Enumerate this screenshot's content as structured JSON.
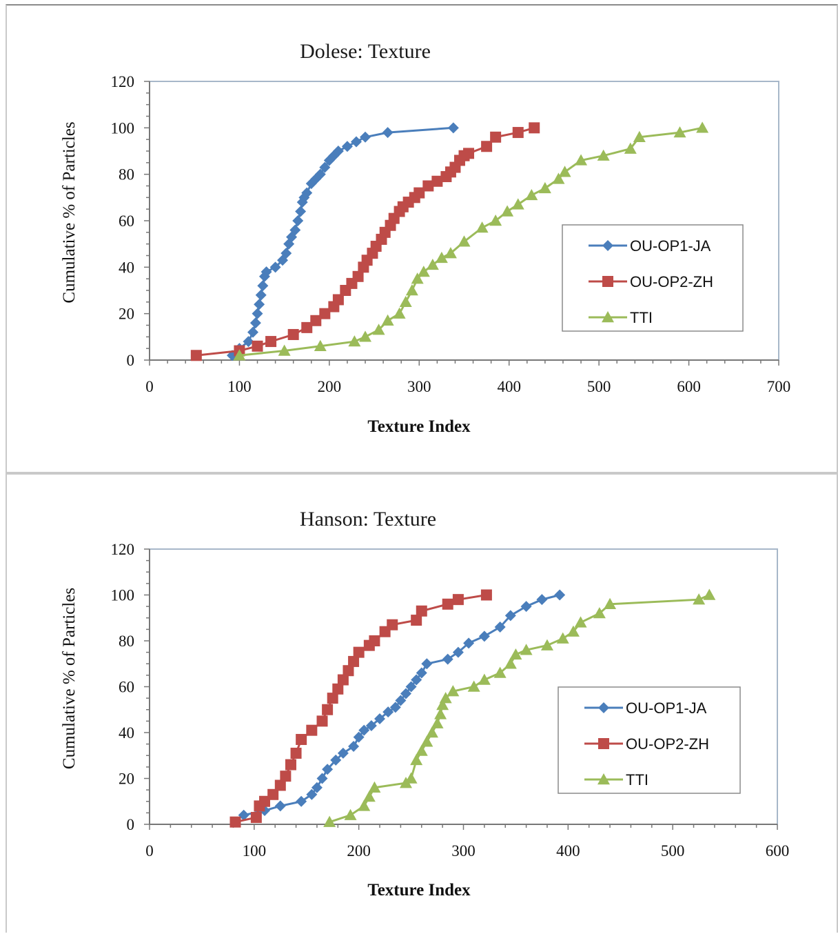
{
  "chart_data": [
    {
      "type": "line",
      "title": "Dolese: Texture",
      "xlabel": "Texture Index",
      "ylabel": "Cumulative % of Particles",
      "xlim": [
        0,
        700
      ],
      "ylim": [
        0,
        120
      ],
      "x_ticks": [
        0,
        100,
        200,
        300,
        400,
        500,
        600,
        700
      ],
      "y_ticks": [
        0,
        20,
        40,
        60,
        80,
        100,
        120
      ],
      "grid": false,
      "legend_position": "right",
      "series": [
        {
          "name": "OU-OP1-JA",
          "color": "#4A7EBB",
          "marker": "diamond",
          "x": [
            92,
            100,
            110,
            115,
            118,
            120,
            122,
            124,
            126,
            128,
            130,
            140,
            148,
            152,
            155,
            158,
            162,
            165,
            168,
            170,
            172,
            175,
            180,
            185,
            190,
            195,
            200,
            205,
            210,
            220,
            230,
            240,
            265,
            338
          ],
          "y": [
            2,
            5,
            8,
            12,
            16,
            20,
            24,
            28,
            32,
            36,
            38,
            40,
            43,
            46,
            50,
            53,
            56,
            60,
            64,
            68,
            70,
            72,
            76,
            78,
            80,
            83,
            86,
            88,
            90,
            92,
            94,
            96,
            98,
            100
          ]
        },
        {
          "name": "OU-OP2-ZH",
          "color": "#BE4B48",
          "marker": "square",
          "x": [
            52,
            100,
            120,
            135,
            160,
            175,
            185,
            195,
            205,
            210,
            218,
            225,
            232,
            238,
            242,
            248,
            252,
            258,
            262,
            268,
            272,
            278,
            282,
            288,
            295,
            300,
            310,
            320,
            330,
            335,
            340,
            345,
            350,
            355,
            375,
            385,
            410,
            428
          ],
          "y": [
            2,
            4,
            6,
            8,
            11,
            14,
            17,
            20,
            23,
            26,
            30,
            33,
            36,
            40,
            43,
            46,
            49,
            52,
            55,
            58,
            61,
            64,
            66,
            68,
            70,
            72,
            75,
            77,
            79,
            81,
            83,
            86,
            88,
            89,
            92,
            96,
            98,
            100
          ]
        },
        {
          "name": "TTI",
          "color": "#9BBB59",
          "marker": "triangle",
          "x": [
            100,
            150,
            190,
            228,
            240,
            255,
            265,
            278,
            285,
            292,
            298,
            305,
            315,
            325,
            335,
            350,
            370,
            385,
            398,
            410,
            425,
            440,
            455,
            462,
            480,
            505,
            535,
            545,
            590,
            615
          ],
          "y": [
            2,
            4,
            6,
            8,
            10,
            13,
            17,
            20,
            25,
            30,
            35,
            38,
            41,
            44,
            46,
            51,
            57,
            60,
            64,
            67,
            71,
            74,
            78,
            81,
            86,
            88,
            91,
            96,
            98,
            100
          ]
        }
      ]
    },
    {
      "type": "line",
      "title": "Hanson: Texture",
      "xlabel": "Texture Index",
      "ylabel": "Cumulative % of Particles",
      "xlim": [
        0,
        600
      ],
      "ylim": [
        0,
        120
      ],
      "x_ticks": [
        0,
        100,
        200,
        300,
        400,
        500,
        600
      ],
      "y_ticks": [
        0,
        20,
        40,
        60,
        80,
        100,
        120
      ],
      "grid": false,
      "legend_position": "right",
      "series": [
        {
          "name": "OU-OP1-JA",
          "color": "#4A7EBB",
          "marker": "diamond",
          "x": [
            90,
            110,
            125,
            145,
            155,
            160,
            165,
            170,
            178,
            185,
            195,
            200,
            205,
            212,
            220,
            228,
            235,
            240,
            245,
            250,
            255,
            260,
            265,
            285,
            295,
            305,
            320,
            335,
            345,
            360,
            375,
            392
          ],
          "y": [
            4,
            6,
            8,
            10,
            13,
            16,
            20,
            24,
            28,
            31,
            34,
            38,
            41,
            43,
            46,
            49,
            51,
            54,
            57,
            60,
            63,
            66,
            70,
            72,
            75,
            79,
            82,
            86,
            91,
            95,
            98,
            100
          ]
        },
        {
          "name": "OU-OP2-ZH",
          "color": "#BE4B48",
          "marker": "square",
          "x": [
            82,
            102,
            105,
            110,
            118,
            125,
            130,
            135,
            140,
            145,
            155,
            165,
            170,
            175,
            180,
            185,
            190,
            195,
            200,
            210,
            215,
            225,
            232,
            255,
            260,
            285,
            295,
            322
          ],
          "y": [
            1,
            3,
            8,
            10,
            13,
            17,
            21,
            26,
            31,
            37,
            41,
            45,
            50,
            55,
            59,
            63,
            67,
            71,
            75,
            78,
            80,
            84,
            87,
            89,
            93,
            96,
            98,
            100
          ]
        },
        {
          "name": "TTI",
          "color": "#9BBB59",
          "marker": "triangle",
          "x": [
            172,
            192,
            205,
            210,
            215,
            245,
            250,
            255,
            260,
            265,
            270,
            275,
            278,
            280,
            283,
            290,
            310,
            320,
            335,
            345,
            350,
            360,
            380,
            395,
            405,
            412,
            430,
            440,
            525,
            535
          ],
          "y": [
            1,
            4,
            8,
            12,
            16,
            18,
            20,
            28,
            32,
            36,
            40,
            44,
            48,
            52,
            55,
            58,
            60,
            63,
            66,
            70,
            74,
            76,
            78,
            81,
            84,
            88,
            92,
            96,
            98,
            100
          ]
        }
      ]
    }
  ]
}
